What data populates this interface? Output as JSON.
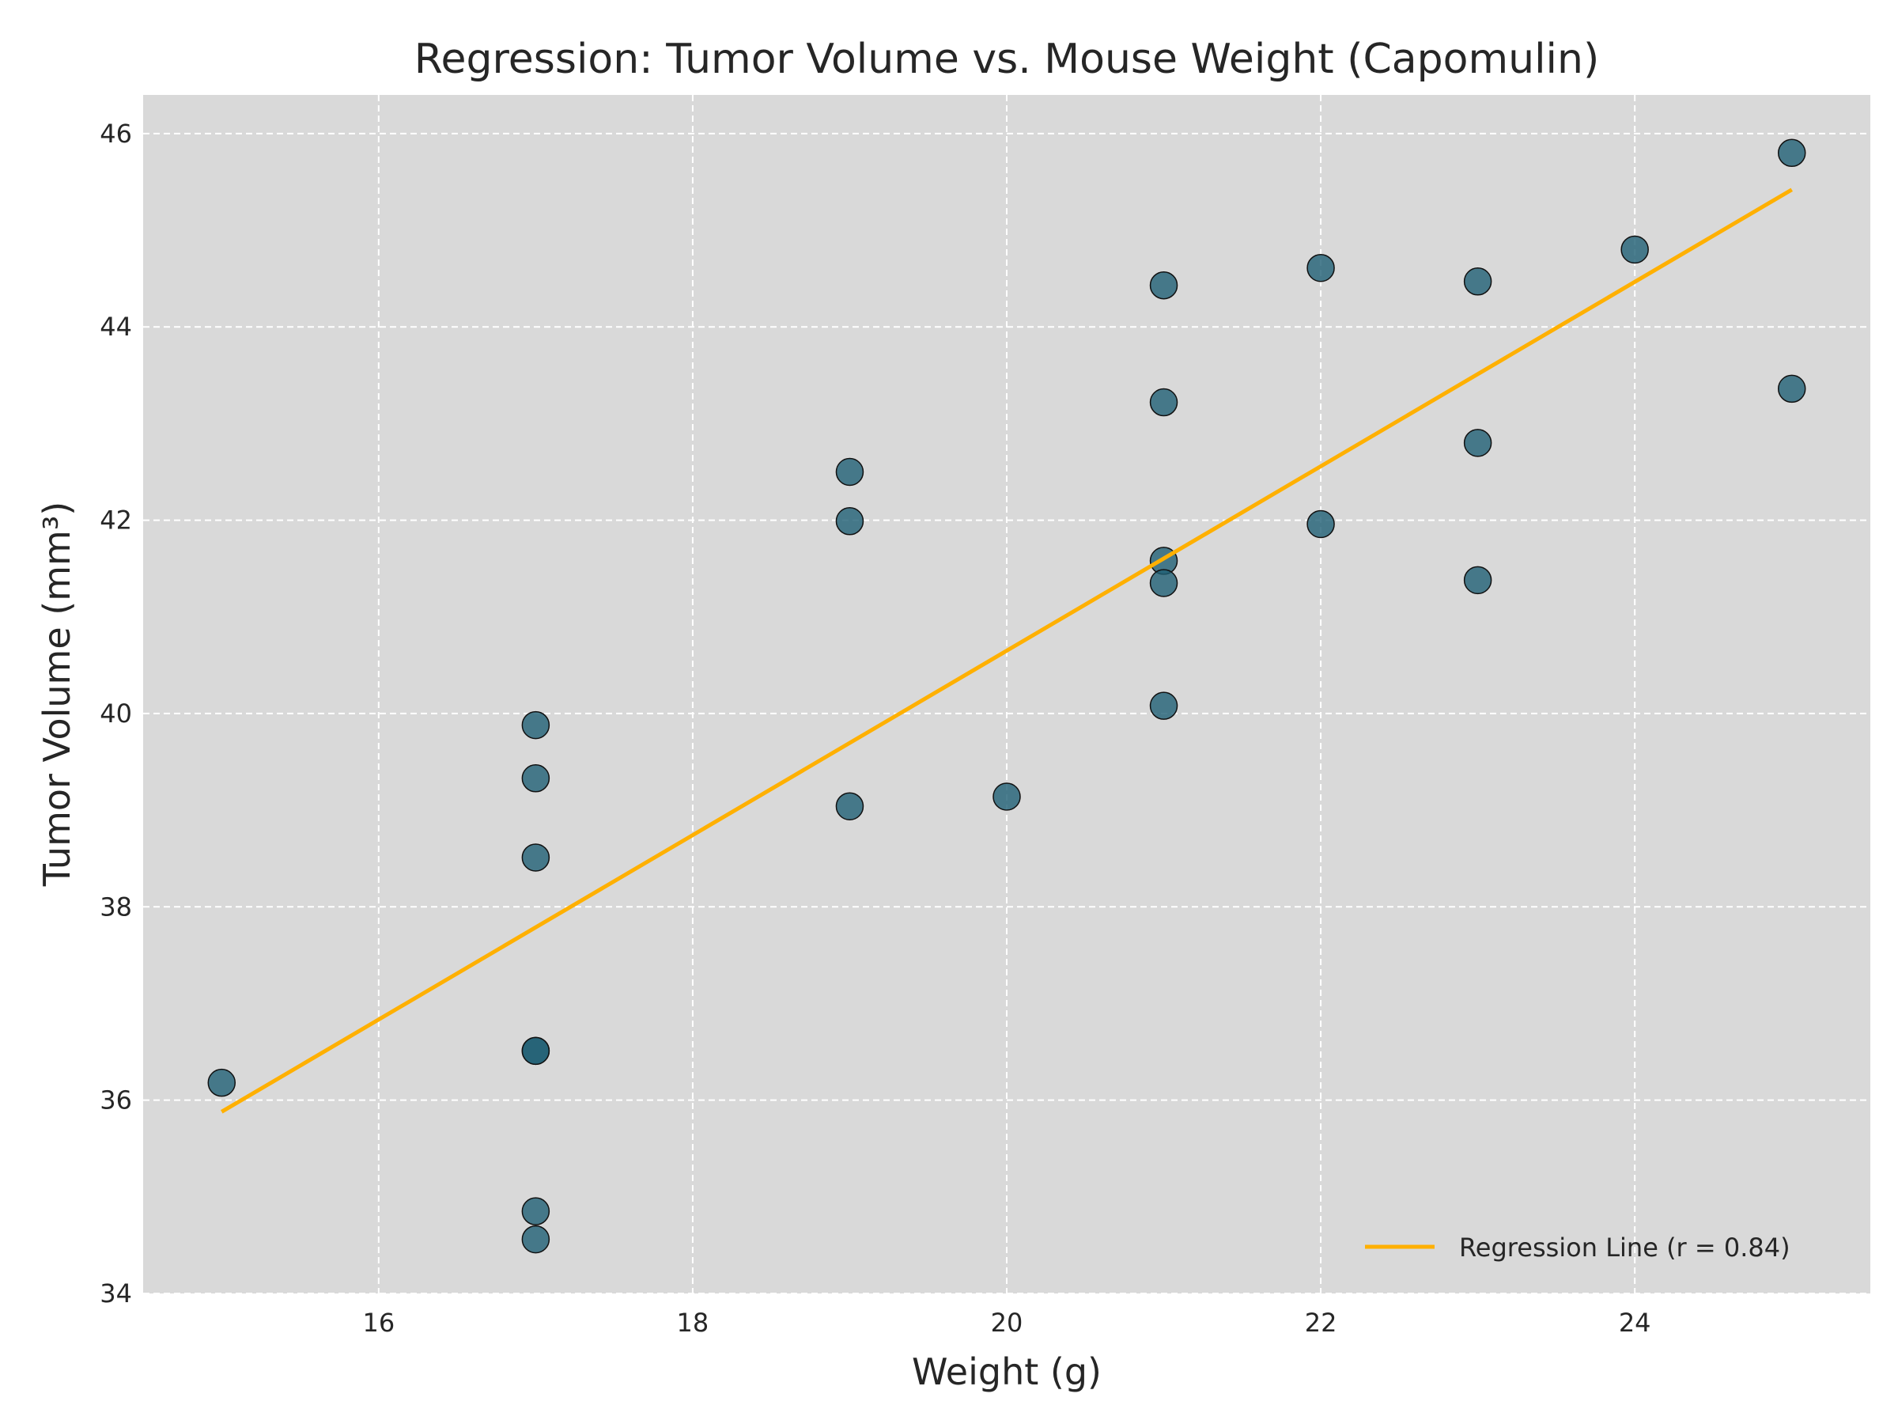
{
  "chart_data": {
    "type": "scatter",
    "title": "Regression: Tumor Volume vs. Mouse Weight (Capomulin)",
    "xlabel": "Weight (g)",
    "ylabel": "Tumor Volume (mm³)",
    "xlim": [
      14.5,
      25.5
    ],
    "ylim": [
      34,
      46.4
    ],
    "xticks": [
      16,
      18,
      20,
      22,
      24
    ],
    "yticks": [
      34,
      36,
      38,
      40,
      42,
      44,
      46
    ],
    "grid": true,
    "background_color": "#d9d9d9",
    "point_color": "#1f5f74",
    "point_edge_color": "#111111",
    "line_color": "#ffb000",
    "points": [
      {
        "x": 15,
        "y": 36.18
      },
      {
        "x": 17,
        "y": 39.88
      },
      {
        "x": 17,
        "y": 39.33
      },
      {
        "x": 17,
        "y": 38.51
      },
      {
        "x": 17,
        "y": 36.51
      },
      {
        "x": 17,
        "y": 36.51
      },
      {
        "x": 17,
        "y": 34.85
      },
      {
        "x": 17,
        "y": 34.56
      },
      {
        "x": 19,
        "y": 42.5
      },
      {
        "x": 19,
        "y": 41.99
      },
      {
        "x": 19,
        "y": 39.04
      },
      {
        "x": 20,
        "y": 39.14
      },
      {
        "x": 21,
        "y": 44.43
      },
      {
        "x": 21,
        "y": 43.22
      },
      {
        "x": 21,
        "y": 41.58
      },
      {
        "x": 21,
        "y": 41.35
      },
      {
        "x": 21,
        "y": 40.08
      },
      {
        "x": 22,
        "y": 44.61
      },
      {
        "x": 22,
        "y": 41.96
      },
      {
        "x": 23,
        "y": 44.47
      },
      {
        "x": 23,
        "y": 42.8
      },
      {
        "x": 23,
        "y": 41.38
      },
      {
        "x": 24,
        "y": 44.8
      },
      {
        "x": 25,
        "y": 45.8
      },
      {
        "x": 25,
        "y": 43.36
      }
    ],
    "regression_line": {
      "x": [
        15,
        25
      ],
      "y": [
        35.88,
        45.42
      ]
    },
    "legend": {
      "placement": "lower-right",
      "entries": [
        {
          "label": "Regression Line (r = 0.84)"
        }
      ]
    }
  }
}
